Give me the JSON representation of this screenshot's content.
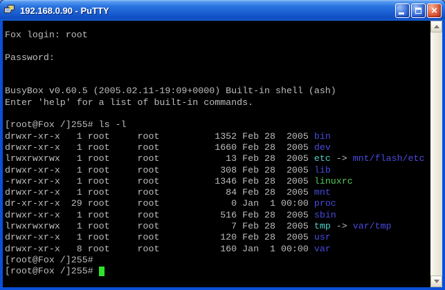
{
  "window": {
    "title": "192.168.0.90 - PuTTY",
    "close_glyph": "×"
  },
  "terminal": {
    "palette": {
      "bg": "#000000",
      "fg": "#BEBEBE",
      "dir": "#4A4AE0",
      "link": "#4FCFC7",
      "exec": "#55C855",
      "cursor": "#2BE42B"
    },
    "lines": [
      {
        "segments": [
          {
            "t": "Fox login: root",
            "c": "fg"
          }
        ]
      },
      {
        "segments": []
      },
      {
        "segments": [
          {
            "t": "Password:",
            "c": "fg"
          }
        ]
      },
      {
        "segments": []
      },
      {
        "segments": []
      },
      {
        "segments": [
          {
            "t": "BusyBox v0.60.5 (2005.02.11-19:09+0000) Built-in shell (ash)",
            "c": "fg"
          }
        ]
      },
      {
        "segments": [
          {
            "t": "Enter 'help' for a list of built-in commands.",
            "c": "fg"
          }
        ]
      },
      {
        "segments": []
      },
      {
        "segments": [
          {
            "t": "[root@Fox /]255# ls -l",
            "c": "fg"
          }
        ]
      },
      {
        "segments": [
          {
            "t": "drwxr-xr-x   1 root     root          1352 Feb 28  2005 ",
            "c": "fg"
          },
          {
            "t": "bin",
            "c": "dir"
          }
        ]
      },
      {
        "segments": [
          {
            "t": "drwxr-xr-x   1 root     root          1660 Feb 28  2005 ",
            "c": "fg"
          },
          {
            "t": "dev",
            "c": "dir"
          }
        ]
      },
      {
        "segments": [
          {
            "t": "lrwxrwxrwx   1 root     root            13 Feb 28  2005 ",
            "c": "fg"
          },
          {
            "t": "etc",
            "c": "link"
          },
          {
            "t": " -> ",
            "c": "fg"
          },
          {
            "t": "mnt/flash/etc",
            "c": "dir"
          }
        ]
      },
      {
        "segments": [
          {
            "t": "drwxr-xr-x   1 root     root           308 Feb 28  2005 ",
            "c": "fg"
          },
          {
            "t": "lib",
            "c": "dir"
          }
        ]
      },
      {
        "segments": [
          {
            "t": "-rwxr-xr-x   1 root     root          1346 Feb 28  2005 ",
            "c": "fg"
          },
          {
            "t": "linuxrc",
            "c": "exec"
          }
        ]
      },
      {
        "segments": [
          {
            "t": "drwxr-xr-x   1 root     root            84 Feb 28  2005 ",
            "c": "fg"
          },
          {
            "t": "mnt",
            "c": "dir"
          }
        ]
      },
      {
        "segments": [
          {
            "t": "dr-xr-xr-x  29 root     root             0 Jan  1 00:00 ",
            "c": "fg"
          },
          {
            "t": "proc",
            "c": "dir"
          }
        ]
      },
      {
        "segments": [
          {
            "t": "drwxr-xr-x   1 root     root           516 Feb 28  2005 ",
            "c": "fg"
          },
          {
            "t": "sbin",
            "c": "dir"
          }
        ]
      },
      {
        "segments": [
          {
            "t": "lrwxrwxrwx   1 root     root             7 Feb 28  2005 ",
            "c": "fg"
          },
          {
            "t": "tmp",
            "c": "link"
          },
          {
            "t": " -> ",
            "c": "fg"
          },
          {
            "t": "var/tmp",
            "c": "dir"
          }
        ]
      },
      {
        "segments": [
          {
            "t": "drwxr-xr-x   1 root     root           120 Feb 28  2005 ",
            "c": "fg"
          },
          {
            "t": "usr",
            "c": "dir"
          }
        ]
      },
      {
        "segments": [
          {
            "t": "drwxr-xr-x   8 root     root           160 Jan  1 00:00 ",
            "c": "fg"
          },
          {
            "t": "var",
            "c": "dir"
          }
        ]
      },
      {
        "segments": [
          {
            "t": "[root@Fox /]255#",
            "c": "fg"
          }
        ]
      },
      {
        "segments": [
          {
            "t": "[root@Fox /]255# ",
            "c": "fg"
          }
        ],
        "cursor": true
      }
    ]
  }
}
